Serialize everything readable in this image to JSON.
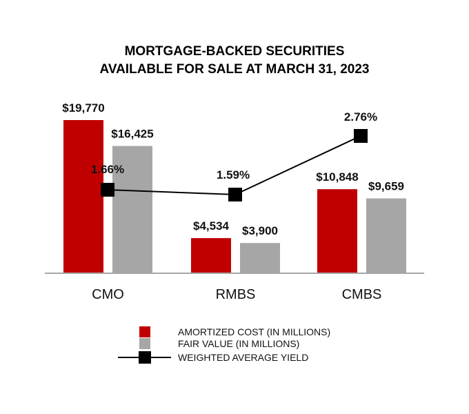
{
  "chart_data": {
    "type": "bar",
    "title_lines": [
      "MORTGAGE-BACKED SECURITIES",
      "AVAILABLE FOR SALE AT MARCH 31, 2023"
    ],
    "categories": [
      "CMO",
      "RMBS",
      "CMBS"
    ],
    "series": [
      {
        "name": "AMORTIZED COST (IN MILLIONS)",
        "type": "bar",
        "color": "#c00000",
        "values": [
          19770,
          4534,
          10848
        ],
        "labels": [
          "$19,770",
          "$4,534",
          "$10,848"
        ]
      },
      {
        "name": "FAIR VALUE (IN MILLIONS)",
        "type": "bar",
        "color": "#a6a6a6",
        "values": [
          16425,
          3900,
          9659
        ],
        "labels": [
          "$16,425",
          "$3,900",
          "$9,659"
        ]
      },
      {
        "name": "WEIGHTED AVERAGE YIELD",
        "type": "line",
        "color": "#000000",
        "values": [
          1.66,
          1.59,
          2.76
        ],
        "labels": [
          "1.66%",
          "1.59%",
          "2.76%"
        ]
      }
    ],
    "xlabel": "",
    "ylabel": "",
    "grid": false,
    "legend_position": "bottom"
  }
}
